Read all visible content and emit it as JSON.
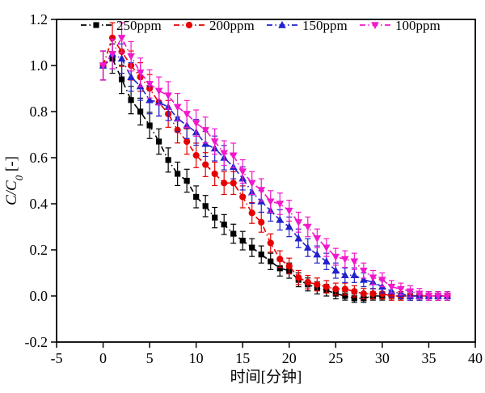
{
  "figure": {
    "background": "#ffffff",
    "border_color": "#000000"
  },
  "chart_data": {
    "type": "scatter",
    "title": "",
    "xlabel": "时间[分钟]",
    "ylabel": {
      "main": "C/C",
      "subscript": "0",
      "unit": " [-]"
    },
    "xlim": [
      -5,
      40
    ],
    "ylim": [
      -0.2,
      1.2
    ],
    "xticks": [
      -5,
      0,
      5,
      10,
      15,
      20,
      25,
      30,
      35,
      40
    ],
    "yticks": [
      -0.2,
      0.0,
      0.2,
      0.4,
      0.6,
      0.8,
      1.0,
      1.2
    ],
    "grid": false,
    "legend": {
      "position": "top-inside-horizontal"
    },
    "line_style": "dash-dot",
    "x": [
      0,
      1,
      2,
      3,
      4,
      5,
      6,
      7,
      8,
      9,
      10,
      11,
      12,
      13,
      14,
      15,
      16,
      17,
      18,
      19,
      20,
      21,
      22,
      23,
      24,
      25,
      26,
      27,
      28,
      29,
      30,
      31,
      32,
      33,
      34,
      35,
      36,
      37
    ],
    "series": [
      {
        "name": "250ppm",
        "color": "#000000",
        "marker": "square",
        "values": [
          1.0,
          1.03,
          0.94,
          0.85,
          0.8,
          0.74,
          0.67,
          0.59,
          0.53,
          0.5,
          0.43,
          0.39,
          0.34,
          0.31,
          0.27,
          0.24,
          0.21,
          0.18,
          0.15,
          0.12,
          0.11,
          0.07,
          0.05,
          0.035,
          0.025,
          0.01,
          0.0,
          -0.01,
          -0.01,
          0.0,
          0.0,
          0.0,
          0.0,
          0.0,
          0.0,
          0.0,
          0.0,
          0.0
        ]
      },
      {
        "name": "200ppm",
        "color": "#e60000",
        "marker": "circle",
        "values": [
          1.0,
          1.12,
          1.06,
          1.0,
          0.95,
          0.9,
          0.84,
          0.79,
          0.72,
          0.67,
          0.61,
          0.57,
          0.53,
          0.49,
          0.49,
          0.43,
          0.36,
          0.32,
          0.23,
          0.16,
          0.13,
          0.08,
          0.06,
          0.05,
          0.04,
          0.03,
          0.03,
          0.02,
          0.01,
          0.01,
          0.01,
          0.0,
          0.0,
          0.0,
          0.0,
          0.0,
          0.0,
          0.0
        ]
      },
      {
        "name": "150ppm",
        "color": "#2222cc",
        "marker": "triangle-up",
        "values": [
          1.0,
          1.05,
          1.03,
          0.95,
          0.91,
          0.85,
          0.84,
          0.82,
          0.77,
          0.74,
          0.71,
          0.66,
          0.64,
          0.6,
          0.56,
          0.51,
          0.45,
          0.41,
          0.37,
          0.33,
          0.3,
          0.25,
          0.21,
          0.18,
          0.15,
          0.11,
          0.09,
          0.09,
          0.07,
          0.06,
          0.04,
          0.02,
          0.01,
          0.0,
          0.0,
          0.0,
          0.0,
          0.0
        ]
      },
      {
        "name": "100ppm",
        "color": "#f218cc",
        "marker": "triangle-down",
        "values": [
          1.0,
          1.05,
          1.12,
          1.04,
          0.97,
          0.92,
          0.89,
          0.87,
          0.82,
          0.79,
          0.75,
          0.72,
          0.67,
          0.62,
          0.61,
          0.54,
          0.49,
          0.46,
          0.41,
          0.4,
          0.37,
          0.32,
          0.3,
          0.25,
          0.21,
          0.17,
          0.16,
          0.15,
          0.11,
          0.08,
          0.07,
          0.04,
          0.03,
          0.02,
          0.01,
          0.0,
          0.0,
          0.0
        ]
      }
    ],
    "error_bar_rule": {
      "base": 0.018,
      "scale": 0.045
    }
  }
}
